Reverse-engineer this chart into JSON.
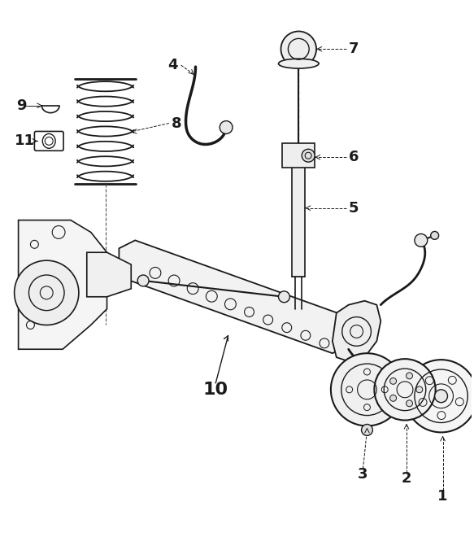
{
  "bg_color": "#ffffff",
  "line_color": "#1a1a1a",
  "label_color": "#000000",
  "figsize": [
    5.83,
    6.76
  ],
  "dpi": 100,
  "label_fontsize": 13,
  "label_fontweight": "bold",
  "ann_lw": 0.7,
  "ann_dashes": [
    3,
    2
  ]
}
